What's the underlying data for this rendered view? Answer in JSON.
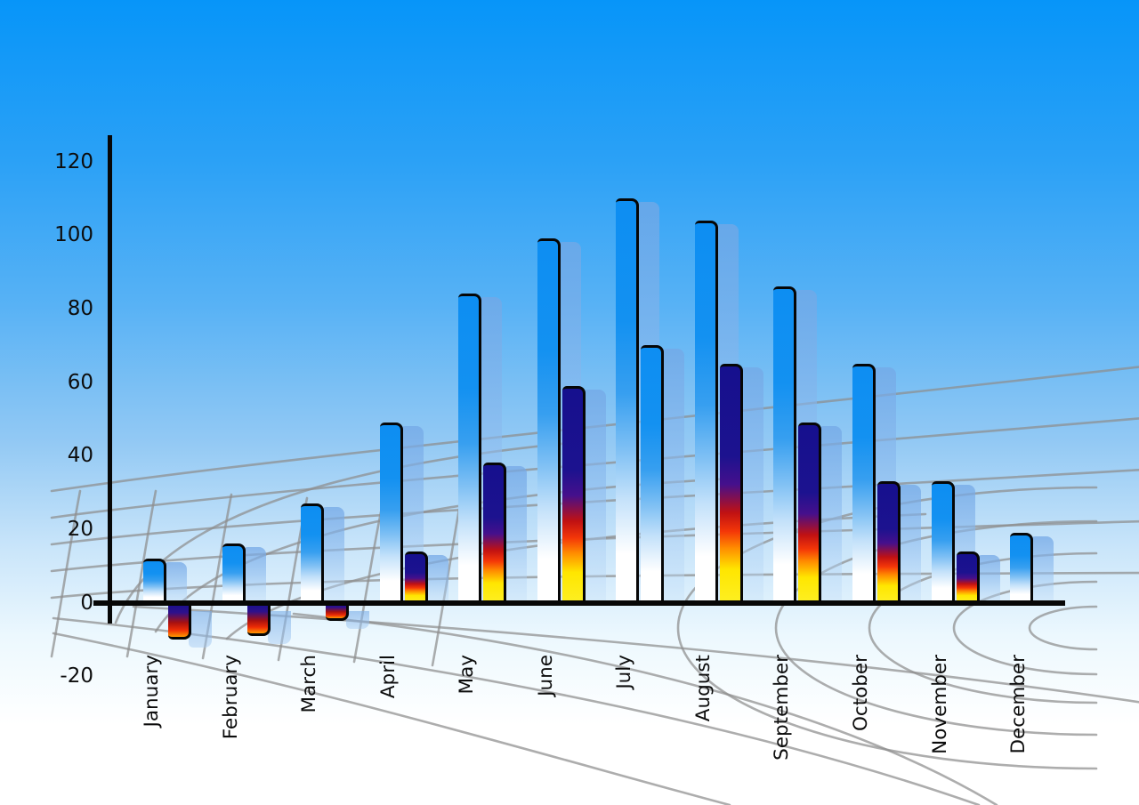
{
  "chart_data": {
    "type": "bar",
    "title": "",
    "xlabel": "",
    "ylabel": "",
    "categories": [
      "January",
      "February",
      "March",
      "April",
      "May",
      "June",
      "July",
      "August",
      "September",
      "October",
      "November",
      "December"
    ],
    "series": [
      {
        "name": "primary-blue-bars",
        "style": "blue",
        "values": [
          12,
          16,
          27,
          49,
          84,
          99,
          110,
          104,
          86,
          65,
          33,
          19
        ]
      },
      {
        "name": "secondary-rainbow-bars",
        "style": "rainbow",
        "style_overrides": {
          "6": "blue"
        },
        "values": [
          -10,
          -9,
          -5,
          14,
          38,
          59,
          70,
          65,
          49,
          33,
          14,
          null
        ]
      }
    ],
    "ylim": [
      -20,
      120
    ],
    "yticks": [
      120,
      100,
      80,
      60,
      40,
      20,
      0,
      -20
    ],
    "ytick_labels": [
      "120",
      "100",
      "80",
      "60",
      "40",
      "20",
      "0",
      "-20"
    ],
    "grid": "perspective-floor",
    "legend": null
  },
  "colors": {
    "sky_top": "#0795f9",
    "sky_bottom": "#ffffff",
    "bar_blue": "#1391f1",
    "bar_shadow": "#9cc4ef",
    "rainbow_navy": "#16108e",
    "rainbow_red": "#e11010",
    "rainbow_yellow": "#ffe600",
    "grid_line": "#8d8d8d",
    "axis": "#070707",
    "label_text": "#0d0d0d"
  }
}
